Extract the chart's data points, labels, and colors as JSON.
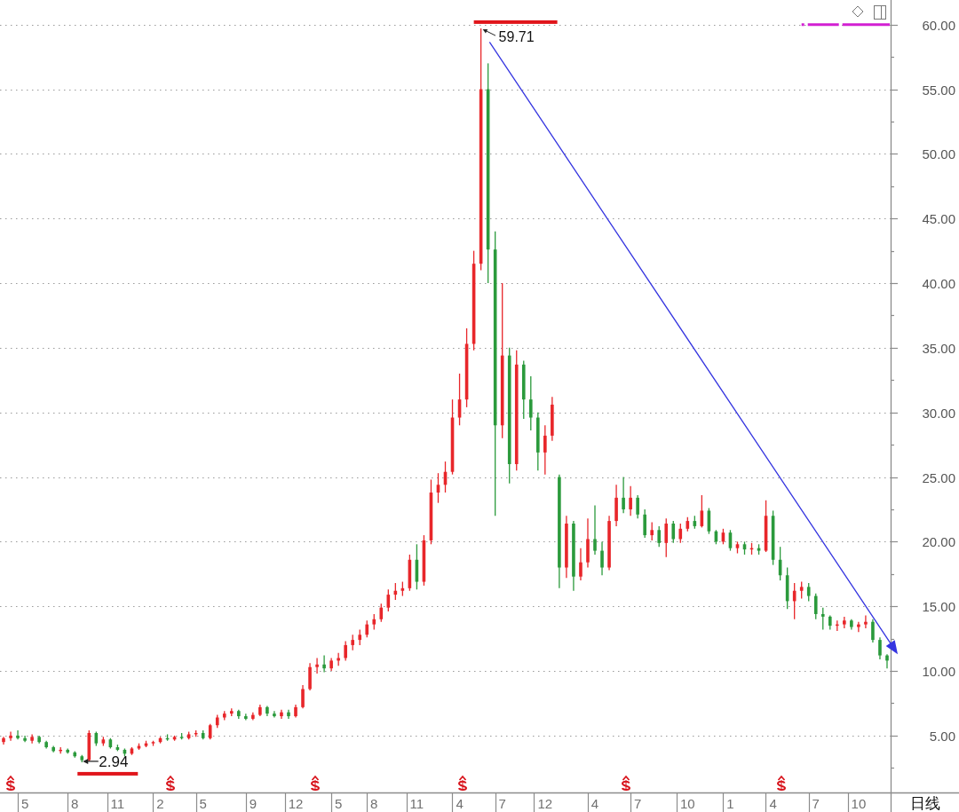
{
  "chart_data": {
    "type": "candlestick",
    "categories": [
      null,
      null,
      null,
      "5",
      null,
      null,
      null,
      null,
      null,
      null,
      "8",
      null,
      null,
      null,
      null,
      null,
      "11",
      null,
      null,
      null,
      null,
      null,
      "2",
      null,
      null,
      null,
      null,
      null,
      "5",
      null,
      null,
      null,
      null,
      null,
      null,
      "9",
      null,
      null,
      null,
      null,
      null,
      "12",
      null,
      null,
      null,
      null,
      null,
      "5",
      null,
      null,
      null,
      null,
      "8",
      null,
      null,
      null,
      null,
      null,
      "11",
      null,
      null,
      null,
      null,
      null,
      "4",
      null,
      null,
      null,
      null,
      null,
      "7",
      null,
      null,
      null,
      null,
      null,
      "12",
      null,
      null,
      null,
      null,
      null,
      null,
      "4",
      null,
      null,
      null,
      null,
      null,
      "7",
      null,
      null,
      null,
      null,
      null,
      null,
      "10",
      null,
      null,
      null,
      null,
      null,
      "1",
      null,
      null,
      null,
      null,
      null,
      "4",
      null,
      null,
      null,
      null,
      null,
      "7",
      null,
      null,
      null,
      null,
      null,
      "10",
      null,
      null,
      null,
      null
    ],
    "ohlc": [
      [
        4.5,
        4.9,
        4.3,
        4.8
      ],
      [
        4.8,
        5.3,
        4.6,
        5.0
      ],
      [
        5.0,
        5.4,
        4.7,
        4.8
      ],
      [
        4.8,
        5.0,
        4.5,
        4.6
      ],
      [
        4.6,
        5.1,
        4.4,
        4.9
      ],
      [
        4.9,
        5.0,
        4.4,
        4.5
      ],
      [
        4.5,
        4.6,
        4.0,
        4.1
      ],
      [
        4.1,
        4.2,
        3.7,
        3.8
      ],
      [
        3.8,
        4.1,
        3.6,
        3.9
      ],
      [
        3.9,
        4.0,
        3.6,
        3.7
      ],
      [
        3.7,
        3.8,
        3.3,
        3.4
      ],
      [
        3.4,
        3.5,
        2.94,
        3.1
      ],
      [
        3.1,
        5.4,
        3.0,
        5.2
      ],
      [
        5.2,
        5.3,
        4.2,
        4.4
      ],
      [
        4.4,
        4.9,
        4.2,
        4.7
      ],
      [
        4.7,
        4.8,
        4.0,
        4.1
      ],
      [
        4.1,
        4.3,
        3.8,
        3.9
      ],
      [
        3.9,
        4.0,
        3.4,
        3.6
      ],
      [
        3.6,
        4.1,
        3.5,
        4.0
      ],
      [
        4.0,
        4.4,
        3.9,
        4.2
      ],
      [
        4.2,
        4.6,
        4.1,
        4.4
      ],
      [
        4.4,
        4.6,
        4.2,
        4.5
      ],
      [
        4.5,
        4.9,
        4.4,
        4.8
      ],
      [
        4.8,
        5.1,
        4.6,
        4.7
      ],
      [
        4.7,
        5.0,
        4.6,
        4.9
      ],
      [
        4.9,
        5.2,
        4.7,
        4.8
      ],
      [
        4.8,
        5.3,
        4.7,
        5.1
      ],
      [
        5.1,
        5.4,
        4.9,
        5.2
      ],
      [
        5.2,
        5.4,
        4.7,
        4.8
      ],
      [
        4.8,
        5.9,
        4.7,
        5.8
      ],
      [
        5.8,
        6.6,
        5.6,
        6.4
      ],
      [
        6.4,
        6.9,
        6.2,
        6.7
      ],
      [
        6.7,
        7.1,
        6.5,
        6.9
      ],
      [
        6.9,
        7.0,
        6.3,
        6.5
      ],
      [
        6.5,
        6.7,
        6.2,
        6.3
      ],
      [
        6.3,
        6.8,
        6.2,
        6.6
      ],
      [
        6.6,
        7.4,
        6.5,
        7.2
      ],
      [
        7.2,
        7.3,
        6.5,
        6.7
      ],
      [
        6.7,
        6.9,
        6.4,
        6.5
      ],
      [
        6.5,
        7.0,
        6.3,
        6.8
      ],
      [
        6.8,
        7.0,
        6.3,
        6.5
      ],
      [
        6.5,
        7.4,
        6.4,
        7.2
      ],
      [
        7.2,
        8.9,
        7.1,
        8.6
      ],
      [
        8.6,
        10.6,
        8.5,
        10.3
      ],
      [
        10.3,
        11.0,
        9.8,
        10.5
      ],
      [
        10.5,
        11.2,
        9.9,
        10.2
      ],
      [
        10.2,
        11.0,
        10.0,
        10.8
      ],
      [
        10.8,
        11.4,
        10.4,
        11.0
      ],
      [
        11.0,
        12.3,
        10.8,
        12.0
      ],
      [
        12.0,
        12.8,
        11.6,
        12.4
      ],
      [
        12.4,
        13.2,
        12.0,
        12.8
      ],
      [
        12.8,
        13.9,
        12.6,
        13.6
      ],
      [
        13.6,
        14.4,
        13.2,
        14.0
      ],
      [
        14.0,
        15.2,
        13.8,
        14.9
      ],
      [
        14.9,
        16.3,
        14.6,
        15.9
      ],
      [
        15.9,
        16.8,
        15.5,
        16.2
      ],
      [
        16.2,
        16.9,
        15.8,
        16.4
      ],
      [
        16.4,
        19.0,
        16.2,
        18.6
      ],
      [
        18.6,
        19.8,
        16.3,
        16.9
      ],
      [
        16.9,
        20.5,
        16.6,
        20.1
      ],
      [
        20.1,
        24.8,
        19.8,
        23.8
      ],
      [
        23.8,
        25.3,
        23.0,
        24.4
      ],
      [
        24.4,
        26.2,
        23.8,
        25.4
      ],
      [
        25.4,
        31.0,
        25.2,
        29.6
      ],
      [
        29.6,
        33.0,
        29.0,
        31.0
      ],
      [
        31.0,
        36.5,
        30.4,
        35.3
      ],
      [
        35.3,
        42.5,
        34.8,
        41.5
      ],
      [
        41.5,
        59.71,
        41.0,
        55.0
      ],
      [
        55.0,
        57.0,
        40.0,
        42.6
      ],
      [
        42.6,
        44.0,
        22.0,
        29.0
      ],
      [
        29.0,
        40.0,
        28.0,
        34.4
      ],
      [
        34.4,
        35.0,
        24.5,
        26.0
      ],
      [
        26.0,
        34.8,
        25.5,
        33.7
      ],
      [
        33.7,
        34.0,
        29.5,
        31.0
      ],
      [
        31.0,
        32.8,
        28.6,
        29.6
      ],
      [
        29.6,
        30.0,
        25.5,
        26.9
      ],
      [
        26.9,
        29.0,
        25.2,
        28.2
      ],
      [
        28.2,
        31.2,
        27.8,
        30.6
      ],
      [
        25.0,
        25.2,
        16.4,
        18.0
      ],
      [
        18.0,
        22.0,
        17.2,
        21.4
      ],
      [
        21.4,
        21.6,
        16.2,
        17.3
      ],
      [
        17.3,
        19.5,
        17.0,
        18.4
      ],
      [
        18.4,
        21.8,
        18.0,
        20.2
      ],
      [
        20.2,
        22.8,
        19.0,
        19.3
      ],
      [
        19.3,
        20.0,
        17.4,
        18.0
      ],
      [
        18.0,
        22.0,
        17.8,
        21.6
      ],
      [
        21.6,
        24.4,
        21.2,
        23.4
      ],
      [
        23.4,
        25.0,
        22.2,
        22.5
      ],
      [
        22.5,
        24.3,
        22.0,
        23.4
      ],
      [
        23.4,
        23.6,
        21.8,
        22.1
      ],
      [
        22.1,
        22.5,
        20.3,
        20.5
      ],
      [
        20.5,
        21.5,
        20.1,
        20.9
      ],
      [
        20.9,
        21.2,
        19.6,
        19.9
      ],
      [
        19.9,
        21.8,
        18.8,
        21.4
      ],
      [
        21.4,
        21.6,
        19.9,
        20.2
      ],
      [
        20.2,
        21.4,
        19.9,
        21.0
      ],
      [
        21.0,
        21.9,
        20.8,
        21.6
      ],
      [
        21.6,
        22.0,
        21.0,
        21.2
      ],
      [
        21.2,
        23.6,
        21.1,
        22.4
      ],
      [
        22.4,
        22.6,
        20.6,
        20.8
      ],
      [
        20.8,
        20.9,
        19.8,
        20.0
      ],
      [
        20.0,
        21.0,
        19.8,
        20.7
      ],
      [
        20.7,
        20.9,
        19.3,
        19.5
      ],
      [
        19.5,
        20.0,
        19.1,
        19.8
      ],
      [
        19.8,
        20.0,
        19.0,
        19.4
      ],
      [
        19.4,
        19.9,
        19.0,
        19.5
      ],
      [
        19.5,
        19.8,
        19.0,
        19.3
      ],
      [
        19.3,
        23.2,
        19.2,
        22.0
      ],
      [
        22.0,
        22.4,
        18.2,
        18.6
      ],
      [
        18.6,
        19.6,
        17.0,
        17.4
      ],
      [
        17.4,
        18.0,
        14.8,
        15.4
      ],
      [
        15.4,
        16.8,
        14.0,
        16.2
      ],
      [
        16.2,
        16.9,
        15.6,
        16.5
      ],
      [
        16.5,
        16.8,
        15.4,
        15.8
      ],
      [
        15.8,
        16.0,
        14.0,
        14.4
      ],
      [
        14.4,
        14.9,
        13.2,
        14.2
      ],
      [
        14.2,
        14.3,
        13.2,
        13.5
      ],
      [
        13.5,
        13.9,
        13.1,
        13.6
      ],
      [
        13.6,
        14.2,
        13.3,
        13.9
      ],
      [
        13.9,
        14.0,
        13.2,
        13.4
      ],
      [
        13.4,
        13.8,
        13.0,
        13.6
      ],
      [
        13.6,
        14.3,
        13.3,
        13.8
      ],
      [
        13.8,
        14.0,
        12.2,
        12.4
      ],
      [
        12.4,
        12.6,
        10.9,
        11.2
      ],
      [
        11.2,
        11.3,
        10.2,
        10.8
      ]
    ],
    "colors": [
      "#e8262a",
      "#e8262a",
      "#2b9a3c",
      "#2b9a3c",
      "#e8262a",
      "#2b9a3c",
      "#2b9a3c",
      "#2b9a3c",
      "#e8262a",
      "#2b9a3c",
      "#2b9a3c",
      "#2b9a3c",
      "#e8262a",
      "#2b9a3c",
      "#e8262a",
      "#2b9a3c",
      "#2b9a3c",
      "#2b9a3c",
      "#e8262a",
      "#e8262a",
      "#e8262a",
      "#e8262a",
      "#e8262a",
      "#2b9a3c",
      "#e8262a",
      "#2b9a3c",
      "#e8262a",
      "#e8262a",
      "#2b9a3c",
      "#e8262a",
      "#e8262a",
      "#e8262a",
      "#e8262a",
      "#2b9a3c",
      "#2b9a3c",
      "#e8262a",
      "#e8262a",
      "#2b9a3c",
      "#2b9a3c",
      "#e8262a",
      "#2b9a3c",
      "#e8262a",
      "#e8262a",
      "#e8262a",
      "#e8262a",
      "#2b9a3c",
      "#e8262a",
      "#e8262a",
      "#e8262a",
      "#e8262a",
      "#e8262a",
      "#e8262a",
      "#e8262a",
      "#e8262a",
      "#e8262a",
      "#e8262a",
      "#e8262a",
      "#e8262a",
      "#2b9a3c",
      "#e8262a",
      "#e8262a",
      "#e8262a",
      "#e8262a",
      "#e8262a",
      "#e8262a",
      "#e8262a",
      "#e8262a",
      "#e8262a",
      "#2b9a3c",
      "#2b9a3c",
      "#e8262a",
      "#2b9a3c",
      "#e8262a",
      "#2b9a3c",
      "#2b9a3c",
      "#2b9a3c",
      "#e8262a",
      "#e8262a",
      "#2b9a3c",
      "#e8262a",
      "#2b9a3c",
      "#e8262a",
      "#e8262a",
      "#2b9a3c",
      "#2b9a3c",
      "#e8262a",
      "#e8262a",
      "#2b9a3c",
      "#e8262a",
      "#2b9a3c",
      "#2b9a3c",
      "#e8262a",
      "#2b9a3c",
      "#e8262a",
      "#2b9a3c",
      "#e8262a",
      "#e8262a",
      "#2b9a3c",
      "#e8262a",
      "#2b9a3c",
      "#2b9a3c",
      "#e8262a",
      "#2b9a3c",
      "#e8262a",
      "#2b9a3c",
      "#e8262a",
      "#2b9a3c",
      "#e8262a",
      "#2b9a3c",
      "#2b9a3c",
      "#2b9a3c",
      "#e8262a",
      "#e8262a",
      "#2b9a3c",
      "#2b9a3c",
      "#2b9a3c",
      "#2b9a3c",
      "#e8262a",
      "#e8262a",
      "#2b9a3c",
      "#e8262a",
      "#e8262a",
      "#2b9a3c",
      "#2b9a3c",
      "#2b9a3c"
    ],
    "ylim": [
      0.6,
      61.9
    ],
    "yticks": [
      {
        "value": 2.5,
        "label": null
      },
      {
        "value": 5,
        "label": "5.00"
      },
      {
        "value": 7.5,
        "label": null
      },
      {
        "value": 10,
        "label": "10.00"
      },
      {
        "value": 12.5,
        "label": null
      },
      {
        "value": 15,
        "label": "15.00"
      },
      {
        "value": 17.5,
        "label": null
      },
      {
        "value": 20,
        "label": "20.00"
      },
      {
        "value": 22.5,
        "label": null
      },
      {
        "value": 25,
        "label": "25.00"
      },
      {
        "value": 27.5,
        "label": null
      },
      {
        "value": 30,
        "label": "30.00"
      },
      {
        "value": 32.5,
        "label": null
      },
      {
        "value": 35,
        "label": "35.00"
      },
      {
        "value": 37.5,
        "label": null
      },
      {
        "value": 40,
        "label": "40.00"
      },
      {
        "value": 42.5,
        "label": null
      },
      {
        "value": 45,
        "label": "45.00"
      },
      {
        "value": 47.5,
        "label": null
      },
      {
        "value": 50,
        "label": "50.00"
      },
      {
        "value": 52.5,
        "label": null
      },
      {
        "value": 55,
        "label": "55.00"
      },
      {
        "value": 57.5,
        "label": null
      },
      {
        "value": 60,
        "label": "60.00"
      }
    ],
    "grid": "y",
    "ref_lines": [
      {
        "axis": "y",
        "value": 60,
        "color": "#d21fd2",
        "line_style": "dashed"
      }
    ],
    "annotations": [
      "59.71",
      "2.94",
      "日线"
    ]
  }
}
